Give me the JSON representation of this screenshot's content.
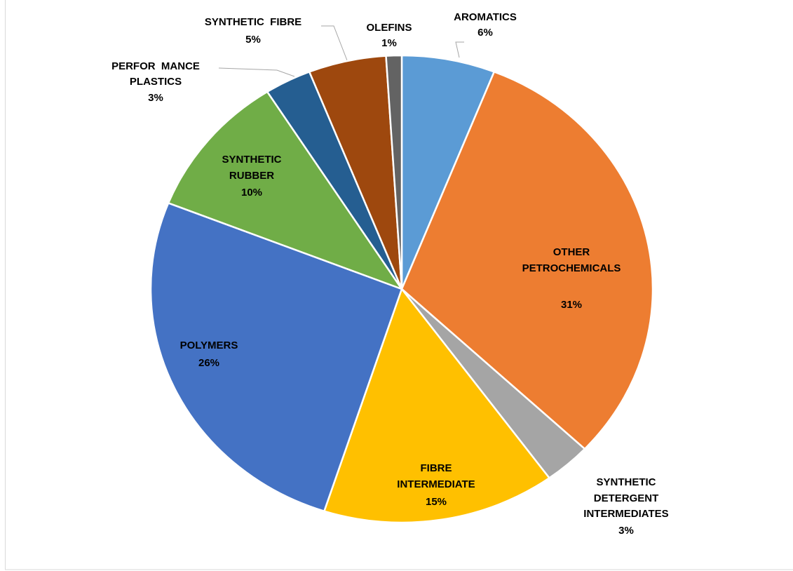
{
  "chart_data": {
    "type": "pie",
    "categories": [
      [
        "AROMATICS"
      ],
      [
        "OTHER",
        "PETROCHEMICALS"
      ],
      [
        "SYNTHETIC",
        "DETERGENT",
        "INTERMEDIATES"
      ],
      [
        "FIBRE",
        "INTERMEDIATE"
      ],
      [
        "POLYMERS"
      ],
      [
        "SYNTHETIC",
        "RUBBER"
      ],
      [
        "PERFOR  MANCE",
        "PLASTICS"
      ],
      [
        "SYNTHETIC  FIBRE"
      ],
      [
        "OLEFINS"
      ]
    ],
    "values": [
      6,
      31,
      3,
      15,
      26,
      10,
      3,
      5,
      1
    ],
    "value_labels": [
      "6%",
      "31%",
      "3%",
      "15%",
      "26%",
      "10%",
      "3%",
      "5%",
      "1%"
    ],
    "colors": [
      "#5b9bd5",
      "#ed7d31",
      "#a5a5a5",
      "#ffc000",
      "#4472c4",
      "#70ad47",
      "#255e91",
      "#9e480e",
      "#636363"
    ]
  }
}
